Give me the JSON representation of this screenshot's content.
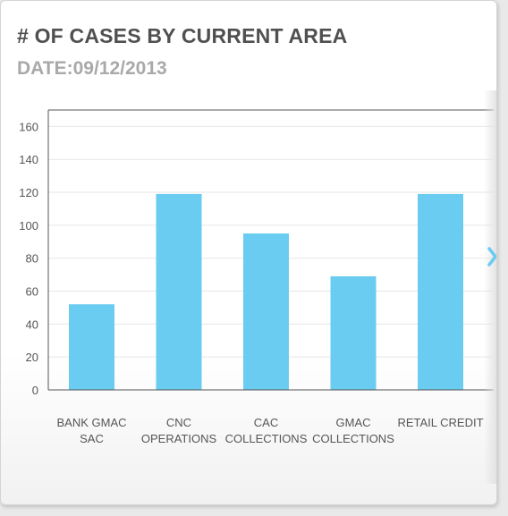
{
  "header": {
    "title": "# OF CASES BY CURRENT AREA",
    "date": "DATE:09/12/2013"
  },
  "colors": {
    "bar": "#6accf0",
    "grid": "#e6e6e6",
    "axis": "#555555",
    "arrow": "#6accf0"
  },
  "nav": {
    "next_icon": "chevron-right-icon"
  },
  "chart_data": {
    "type": "bar",
    "title": "# OF CASES BY CURRENT AREA",
    "subtitle": "DATE:09/12/2013",
    "categories": [
      [
        "BANK GMAC",
        "SAC"
      ],
      [
        "CNC",
        "OPERATIONS"
      ],
      [
        "CAC",
        "COLLECTIONS"
      ],
      [
        "GMAC",
        "COLLECTIONS"
      ],
      [
        "RETAIL CREDIT"
      ]
    ],
    "values": [
      52,
      119,
      95,
      69,
      119
    ],
    "ylim": [
      0,
      170
    ],
    "yticks": [
      0,
      20,
      40,
      60,
      80,
      100,
      120,
      140,
      160
    ],
    "grid": true,
    "xlabel": "",
    "ylabel": ""
  }
}
